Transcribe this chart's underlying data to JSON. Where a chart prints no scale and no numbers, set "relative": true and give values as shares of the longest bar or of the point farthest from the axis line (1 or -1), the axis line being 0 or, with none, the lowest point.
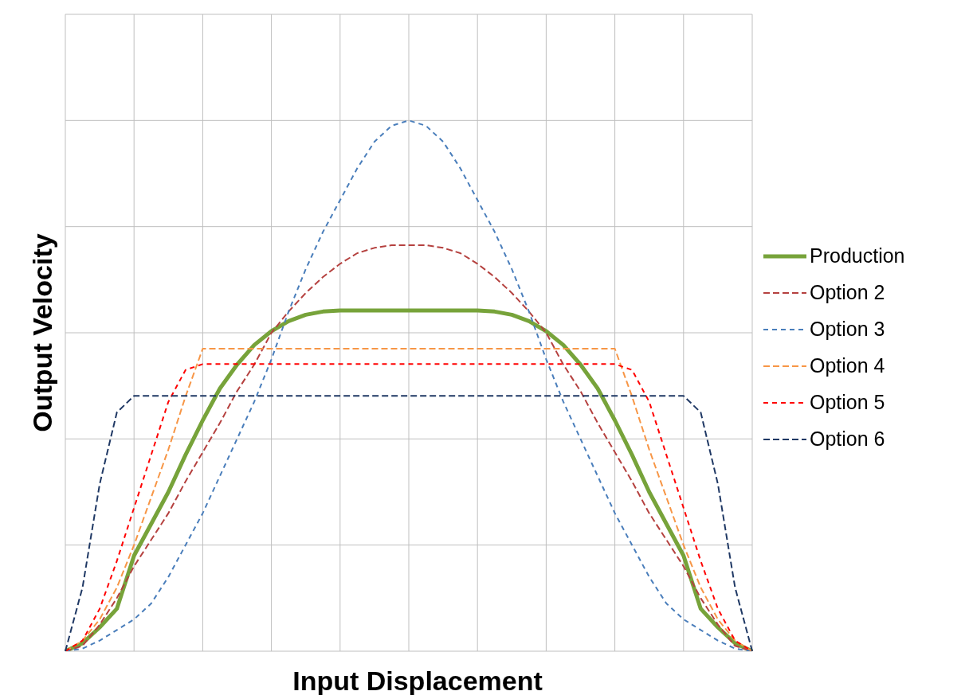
{
  "chart_data": {
    "type": "line",
    "relative": true,
    "xlabel": "Input Displacement",
    "ylabel": "Output Velocity",
    "grid": true,
    "legend": "right",
    "categories": [
      null,
      null,
      null,
      null,
      null,
      null,
      null,
      null,
      null,
      null,
      null,
      null,
      null,
      null,
      null,
      null,
      null,
      null,
      null,
      null,
      null,
      null,
      null,
      null,
      null,
      null,
      null,
      null,
      null,
      null,
      null,
      null,
      null,
      null,
      null,
      null,
      null,
      null,
      null,
      null,
      null
    ],
    "series": [
      {
        "name": "Production",
        "color": "#77a33a",
        "line_style": "solid",
        "values": [
          0,
          0.015,
          0.045,
          0.08,
          0.18,
          0.24,
          0.3,
          0.37,
          0.435,
          0.495,
          0.54,
          0.577,
          0.603,
          0.622,
          0.634,
          0.64,
          0.642,
          0.642,
          0.642,
          0.642,
          0.642,
          0.642,
          0.642,
          0.642,
          0.642,
          0.64,
          0.634,
          0.622,
          0.603,
          0.577,
          0.54,
          0.495,
          0.435,
          0.37,
          0.3,
          0.24,
          0.18,
          0.08,
          0.045,
          0.015,
          0
        ]
      },
      {
        "name": "Option 2",
        "color": "#b5413f",
        "line_style": "dashed",
        "values": [
          0,
          0.01,
          0.05,
          0.1,
          0.16,
          0.21,
          0.26,
          0.32,
          0.375,
          0.43,
          0.49,
          0.54,
          0.6,
          0.64,
          0.675,
          0.705,
          0.73,
          0.75,
          0.76,
          0.765,
          0.765,
          0.765,
          0.76,
          0.75,
          0.73,
          0.705,
          0.675,
          0.64,
          0.6,
          0.54,
          0.49,
          0.43,
          0.375,
          0.32,
          0.26,
          0.21,
          0.16,
          0.1,
          0.05,
          0.01,
          0
        ]
      },
      {
        "name": "Option 3",
        "color": "#4a7ebb",
        "line_style": "dashed",
        "values": [
          0,
          0.005,
          0.02,
          0.04,
          0.06,
          0.09,
          0.14,
          0.2,
          0.26,
          0.33,
          0.4,
          0.47,
          0.55,
          0.64,
          0.72,
          0.79,
          0.85,
          0.91,
          0.96,
          0.99,
          1,
          0.99,
          0.96,
          0.91,
          0.85,
          0.79,
          0.72,
          0.64,
          0.55,
          0.47,
          0.4,
          0.33,
          0.26,
          0.2,
          0.14,
          0.09,
          0.06,
          0.04,
          0.02,
          0.005,
          0
        ]
      },
      {
        "name": "Option 4",
        "color": "#f79646",
        "line_style": "dashed",
        "values": [
          0,
          0.02,
          0.06,
          0.12,
          0.2,
          0.29,
          0.38,
          0.48,
          0.57,
          0.57,
          0.57,
          0.57,
          0.57,
          0.57,
          0.57,
          0.57,
          0.57,
          0.57,
          0.57,
          0.57,
          0.57,
          0.57,
          0.57,
          0.57,
          0.57,
          0.57,
          0.57,
          0.57,
          0.57,
          0.57,
          0.57,
          0.57,
          0.57,
          0.48,
          0.38,
          0.29,
          0.2,
          0.12,
          0.06,
          0.02,
          0
        ]
      },
      {
        "name": "Option 5",
        "color": "#ff0000",
        "line_style": "dashed",
        "values": [
          0,
          0.02,
          0.08,
          0.17,
          0.27,
          0.37,
          0.47,
          0.53,
          0.541,
          0.541,
          0.541,
          0.541,
          0.541,
          0.541,
          0.541,
          0.541,
          0.541,
          0.541,
          0.541,
          0.541,
          0.541,
          0.541,
          0.541,
          0.541,
          0.541,
          0.541,
          0.541,
          0.541,
          0.541,
          0.541,
          0.541,
          0.541,
          0.541,
          0.53,
          0.47,
          0.37,
          0.27,
          0.17,
          0.08,
          0.02,
          0
        ]
      },
      {
        "name": "Option 6",
        "color": "#1f3864",
        "line_style": "dashed",
        "values": [
          0,
          0.12,
          0.315,
          0.45,
          0.481,
          0.481,
          0.481,
          0.481,
          0.481,
          0.481,
          0.481,
          0.481,
          0.481,
          0.481,
          0.481,
          0.481,
          0.481,
          0.481,
          0.481,
          0.481,
          0.481,
          0.481,
          0.481,
          0.481,
          0.481,
          0.481,
          0.481,
          0.481,
          0.481,
          0.481,
          0.481,
          0.481,
          0.481,
          0.481,
          0.481,
          0.481,
          0.481,
          0.45,
          0.315,
          0.12,
          0
        ]
      }
    ]
  }
}
